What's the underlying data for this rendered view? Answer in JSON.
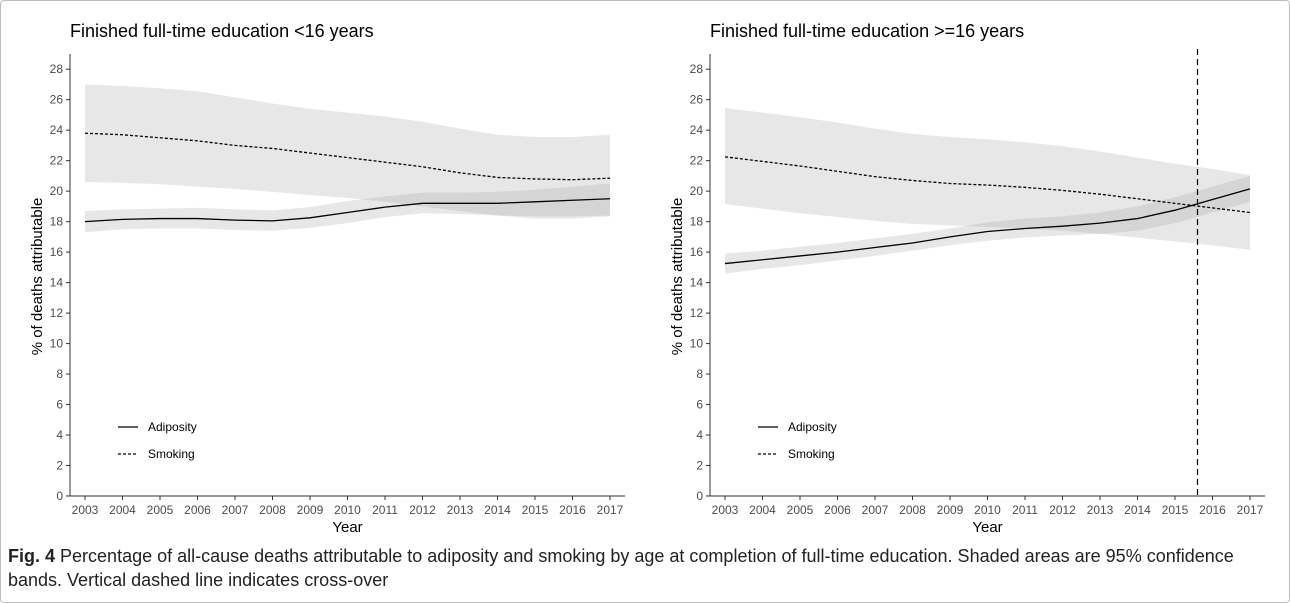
{
  "figure": {
    "label": "Fig. 4",
    "caption": "Percentage of all-cause deaths attributable to adiposity and smoking by age at completion of full-time education. Shaded areas are 95% confidence bands. Vertical dashed line indicates cross-over"
  },
  "chart_data": [
    {
      "type": "line",
      "title": "Finished full-time education <16 years",
      "xlabel": "Year",
      "ylabel": "% of deaths attributable",
      "x": [
        2003,
        2004,
        2005,
        2006,
        2007,
        2008,
        2009,
        2010,
        2011,
        2012,
        2013,
        2014,
        2015,
        2016,
        2017
      ],
      "xlim": [
        2002.6,
        2017.4
      ],
      "ylim": [
        0,
        28.8
      ],
      "yticks": [
        0,
        2,
        4,
        6,
        8,
        10,
        12,
        14,
        16,
        18,
        20,
        22,
        24,
        26,
        28
      ],
      "grid": false,
      "legend_position": "bottom-left",
      "series": [
        {
          "name": "Adiposity",
          "line_style": "solid",
          "values": [
            18.0,
            18.15,
            18.2,
            18.2,
            18.1,
            18.05,
            18.25,
            18.6,
            18.95,
            19.2,
            19.2,
            19.2,
            19.3,
            19.4,
            19.5
          ],
          "lower": [
            17.3,
            17.5,
            17.55,
            17.55,
            17.45,
            17.4,
            17.6,
            17.9,
            18.3,
            18.55,
            18.5,
            18.4,
            18.35,
            18.35,
            18.4
          ],
          "upper": [
            18.7,
            18.8,
            18.85,
            18.9,
            18.8,
            18.75,
            18.95,
            19.35,
            19.65,
            19.9,
            19.9,
            19.95,
            20.1,
            20.3,
            20.5
          ]
        },
        {
          "name": "Smoking",
          "line_style": "dotted",
          "values": [
            23.8,
            23.7,
            23.5,
            23.3,
            23.0,
            22.8,
            22.5,
            22.2,
            21.9,
            21.6,
            21.2,
            20.9,
            20.8,
            20.75,
            20.85
          ],
          "lower": [
            20.6,
            20.55,
            20.45,
            20.3,
            20.15,
            19.95,
            19.75,
            19.55,
            19.3,
            19.0,
            18.7,
            18.4,
            18.2,
            18.2,
            18.35
          ],
          "upper": [
            27.0,
            26.9,
            26.75,
            26.55,
            26.15,
            25.75,
            25.4,
            25.15,
            24.9,
            24.55,
            24.1,
            23.7,
            23.55,
            23.55,
            23.7
          ]
        }
      ]
    },
    {
      "type": "line",
      "title": "Finished full-time education >=16 years",
      "xlabel": "Year",
      "ylabel": "% of deaths attributable",
      "x": [
        2003,
        2004,
        2005,
        2006,
        2007,
        2008,
        2009,
        2010,
        2011,
        2012,
        2013,
        2014,
        2015,
        2016,
        2017
      ],
      "xlim": [
        2002.6,
        2017.4
      ],
      "ylim": [
        0,
        28.8
      ],
      "yticks": [
        0,
        2,
        4,
        6,
        8,
        10,
        12,
        14,
        16,
        18,
        20,
        22,
        24,
        26,
        28
      ],
      "grid": false,
      "legend_position": "bottom-left",
      "crossover_x": 2015.6,
      "series": [
        {
          "name": "Adiposity",
          "line_style": "solid",
          "values": [
            15.25,
            15.5,
            15.75,
            16.0,
            16.3,
            16.6,
            17.0,
            17.35,
            17.55,
            17.7,
            17.9,
            18.2,
            18.75,
            19.45,
            20.15
          ],
          "lower": [
            14.6,
            14.9,
            15.15,
            15.45,
            15.75,
            16.1,
            16.45,
            16.75,
            16.95,
            17.1,
            17.2,
            17.4,
            17.9,
            18.6,
            19.3
          ],
          "upper": [
            15.9,
            16.1,
            16.35,
            16.6,
            16.9,
            17.2,
            17.55,
            17.95,
            18.2,
            18.35,
            18.6,
            19.0,
            19.6,
            20.3,
            21.0
          ]
        },
        {
          "name": "Smoking",
          "line_style": "dotted",
          "values": [
            22.25,
            21.95,
            21.65,
            21.3,
            20.95,
            20.7,
            20.5,
            20.4,
            20.25,
            20.05,
            19.8,
            19.5,
            19.2,
            18.9,
            18.6
          ],
          "lower": [
            19.15,
            18.85,
            18.55,
            18.3,
            18.05,
            17.85,
            17.75,
            17.65,
            17.55,
            17.4,
            17.2,
            16.95,
            16.7,
            16.45,
            16.15
          ],
          "upper": [
            25.45,
            25.15,
            24.85,
            24.5,
            24.1,
            23.75,
            23.55,
            23.4,
            23.2,
            22.95,
            22.6,
            22.2,
            21.8,
            21.45,
            21.05
          ]
        }
      ]
    }
  ]
}
